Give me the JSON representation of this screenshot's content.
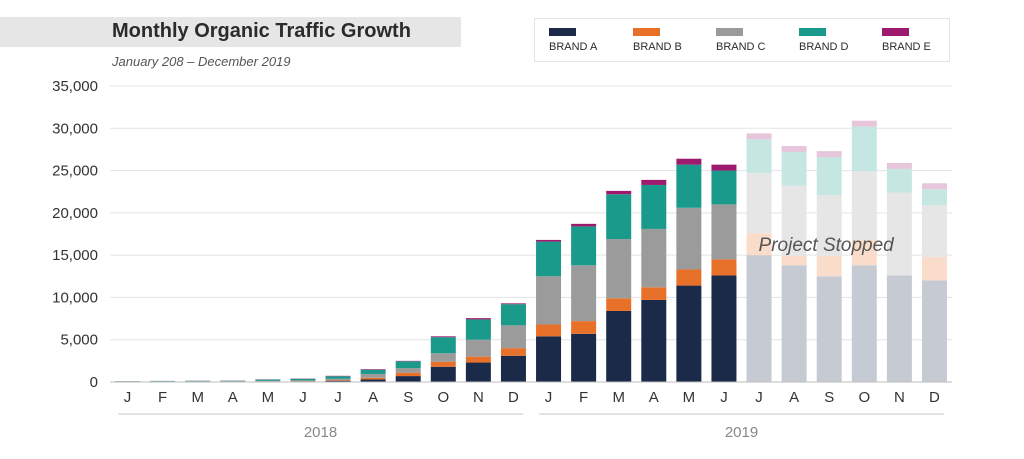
{
  "chart_data": {
    "type": "bar",
    "stacked": true,
    "title": "Monthly Organic Traffic Growth",
    "subtitle": "January 208 – December 2019",
    "xlabel": "",
    "ylabel": "",
    "ylim": [
      0,
      35000
    ],
    "yticks": [
      {
        "value": 0,
        "label": "0"
      },
      {
        "value": 5000,
        "label": "5,000"
      },
      {
        "value": 10000,
        "label": "10,000"
      },
      {
        "value": 15000,
        "label": "15,000"
      },
      {
        "value": 20000,
        "label": "20,000"
      },
      {
        "value": 25000,
        "label": "25,000"
      },
      {
        "value": 30000,
        "label": "30,000"
      },
      {
        "value": 35000,
        "label": "35,000"
      }
    ],
    "grid": true,
    "legend_position": "top-right",
    "categories": [
      "J",
      "F",
      "M",
      "A",
      "M",
      "J",
      "J",
      "A",
      "S",
      "O",
      "N",
      "D",
      "J",
      "F",
      "M",
      "A",
      "M",
      "J",
      "J",
      "A",
      "S",
      "O",
      "N",
      "D"
    ],
    "years": [
      {
        "label": "2018",
        "months": 12
      },
      {
        "label": "2019",
        "months": 12
      }
    ],
    "projected_from_index": 18,
    "series": [
      {
        "name": "BRAND A",
        "color": "#1b2a49",
        "values": [
          20,
          30,
          30,
          30,
          60,
          80,
          150,
          300,
          700,
          1800,
          2300,
          3100,
          5400,
          5700,
          8400,
          9700,
          11400,
          12600,
          15000,
          13800,
          12500,
          13800,
          12600,
          12000
        ]
      },
      {
        "name": "BRAND B",
        "color": "#e8712a",
        "values": [
          10,
          10,
          10,
          10,
          20,
          30,
          80,
          200,
          400,
          600,
          700,
          900,
          1400,
          1500,
          1500,
          1500,
          1900,
          1900,
          2600,
          1100,
          2400,
          3000,
          0,
          2800
        ]
      },
      {
        "name": "BRAND C",
        "color": "#9b9b9b",
        "values": [
          30,
          40,
          40,
          50,
          60,
          80,
          150,
          450,
          550,
          1000,
          2000,
          2700,
          5700,
          6600,
          7000,
          6900,
          7300,
          6500,
          7100,
          8300,
          7200,
          8100,
          9800,
          6100
        ]
      },
      {
        "name": "BRAND D",
        "color": "#1a9a8a",
        "values": [
          30,
          40,
          50,
          60,
          150,
          190,
          300,
          500,
          800,
          1900,
          2400,
          2500,
          4100,
          4600,
          5300,
          5200,
          5100,
          4000,
          4000,
          4000,
          4500,
          5300,
          2800,
          1900
        ]
      },
      {
        "name": "BRAND E",
        "color": "#9e1a6e",
        "values": [
          10,
          10,
          20,
          20,
          20,
          30,
          50,
          70,
          50,
          100,
          150,
          100,
          200,
          300,
          400,
          600,
          700,
          700,
          700,
          700,
          700,
          700,
          700,
          700
        ]
      }
    ],
    "annotations": [
      {
        "text": "Project Stopped"
      }
    ]
  }
}
